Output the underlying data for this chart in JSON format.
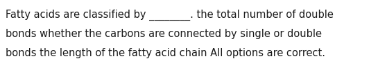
{
  "background_color": "#ffffff",
  "text_color": "#1a1a1a",
  "text_lines": [
    "Fatty acids are classified by ________. the total number of double",
    "bonds whether the carbons are connected by single or double",
    "bonds the length of the fatty acid chain All options are correct."
  ],
  "font_size": 10.5,
  "fig_width": 5.58,
  "fig_height": 1.05,
  "dpi": 100
}
